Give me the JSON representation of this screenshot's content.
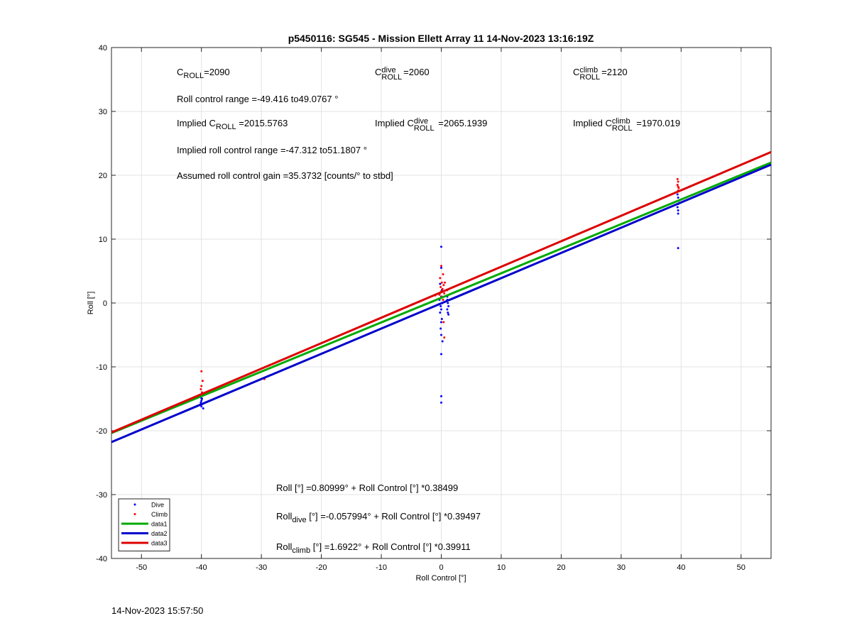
{
  "figure": {
    "title": "p5450116: SG545 - Mission Ellett Array 11 14-Nov-2023 13:16:19Z",
    "timestamp": "14-Nov-2023 15:57:50"
  },
  "annotations": {
    "c_letter": "C",
    "sub_roll": "ROLL",
    "sup_dive": "dive",
    "sup_climb": "climb",
    "c_roll_value": "=2090",
    "c_dive_value": "=2060",
    "c_climb_value": "=2120",
    "roll_range": "Roll control range =-49.416 to49.0767 °",
    "implied_prefix": "Implied C",
    "implied_c_roll_value": "=2015.5763",
    "implied_c_dive_value": "=2065.1939",
    "implied_c_climb_value": "=1970.019",
    "implied_range": "Implied roll control range =-47.312 to51.1807 °",
    "gain": "Assumed roll control gain =35.3732 [counts/° to stbd]",
    "eq_all": "Roll [°] =0.80999° + Roll Control [°] *0.38499",
    "eq_roll_word": "Roll",
    "eq_sub_dive": "dive",
    "eq_sub_climb": "climb",
    "eq_dive_rest": " [°] =-0.057994° + Roll Control [°] *0.39497",
    "eq_climb_rest": " [°] =1.6922° + Roll Control [°] *0.39911"
  },
  "chart_data": {
    "type": "scatter",
    "title": "p5450116: SG545 - Mission Ellett Array 11 14-Nov-2023 13:16:19Z",
    "xlabel": "Roll Control [°]",
    "ylabel": "Roll [°]",
    "xlim": [
      -55,
      55
    ],
    "ylim": [
      -40,
      40
    ],
    "xticks": [
      -50,
      -40,
      -30,
      -20,
      -10,
      0,
      10,
      20,
      30,
      40,
      50
    ],
    "yticks": [
      -40,
      -30,
      -20,
      -10,
      0,
      10,
      20,
      30,
      40
    ],
    "grid": true,
    "legend_position": "bottom-left",
    "series": [
      {
        "name": "Dive",
        "kind": "points",
        "color": "#0000ff",
        "points": [
          [
            -40,
            -14.9
          ],
          [
            -40,
            -15.3
          ],
          [
            -39.8,
            -15.8
          ],
          [
            -40,
            -16.2
          ],
          [
            -39.7,
            -16.5
          ],
          [
            -40,
            -14.5
          ],
          [
            -39.9,
            -15.0
          ],
          [
            -40.1,
            -15.6
          ],
          [
            0,
            8.8
          ],
          [
            0,
            5.5
          ],
          [
            -0.2,
            3.0
          ],
          [
            0.1,
            2.0
          ],
          [
            0,
            1.0
          ],
          [
            -0.3,
            0.5
          ],
          [
            0.2,
            0.0
          ],
          [
            -0.1,
            -0.5
          ],
          [
            0,
            -1.0
          ],
          [
            -0.2,
            -1.5
          ],
          [
            0.1,
            -2.5
          ],
          [
            0,
            -3.0
          ],
          [
            -0.1,
            -4.0
          ],
          [
            0,
            -5.0
          ],
          [
            0.2,
            -6.0
          ],
          [
            0,
            -8.0
          ],
          [
            0,
            -14.6
          ],
          [
            0,
            -15.6
          ],
          [
            1.0,
            0.5
          ],
          [
            1.1,
            0.0
          ],
          [
            1.2,
            -0.5
          ],
          [
            1.0,
            -1.0
          ],
          [
            1.1,
            -1.5
          ],
          [
            1.2,
            -1.8
          ],
          [
            1.0,
            1.0
          ],
          [
            39.5,
            17.5
          ],
          [
            39.4,
            17.0
          ],
          [
            39.5,
            16.5
          ],
          [
            39.6,
            16.0
          ],
          [
            39.5,
            15.5
          ],
          [
            39.4,
            15.0
          ],
          [
            39.5,
            14.5
          ],
          [
            39.5,
            14.0
          ],
          [
            39.5,
            8.6
          ]
        ]
      },
      {
        "name": "Climb",
        "kind": "points",
        "color": "#ff0000",
        "points": [
          [
            -40,
            -10.7
          ],
          [
            -39.8,
            -12.2
          ],
          [
            -40,
            -13.0
          ],
          [
            -40.1,
            -13.5
          ],
          [
            -39.9,
            -14.0
          ],
          [
            -29.5,
            -11.9
          ],
          [
            0,
            5.8
          ],
          [
            0.3,
            4.5
          ],
          [
            -0.2,
            3.9
          ],
          [
            0.1,
            3.2
          ],
          [
            0.4,
            2.8
          ],
          [
            -0.1,
            2.5
          ],
          [
            0.2,
            2.2
          ],
          [
            0,
            1.8
          ],
          [
            0.5,
            1.5
          ],
          [
            -0.3,
            1.3
          ],
          [
            0.1,
            1.0
          ],
          [
            0.3,
            0.5
          ],
          [
            0.5,
            -5.4
          ],
          [
            0.4,
            -3.0
          ],
          [
            -0.5,
            1.5
          ],
          [
            -1.0,
            1.2
          ],
          [
            1.0,
            2.0
          ],
          [
            0.6,
            3.2
          ],
          [
            39.4,
            19.4
          ],
          [
            39.5,
            19.0
          ],
          [
            39.4,
            18.5
          ],
          [
            39.5,
            18.2
          ],
          [
            39.6,
            18.0
          ],
          [
            39.5,
            17.6
          ]
        ]
      },
      {
        "name": "data1",
        "kind": "line",
        "color": "#00aa00",
        "x": [
          -55,
          55
        ],
        "y": [
          -20.36,
          21.98
        ]
      },
      {
        "name": "data2",
        "kind": "line",
        "color": "#0000cc",
        "x": [
          -55,
          55
        ],
        "y": [
          -21.78,
          21.67
        ]
      },
      {
        "name": "data3",
        "kind": "line",
        "color": "#dd0000",
        "x": [
          -55,
          55
        ],
        "y": [
          -20.26,
          23.64
        ]
      }
    ]
  }
}
